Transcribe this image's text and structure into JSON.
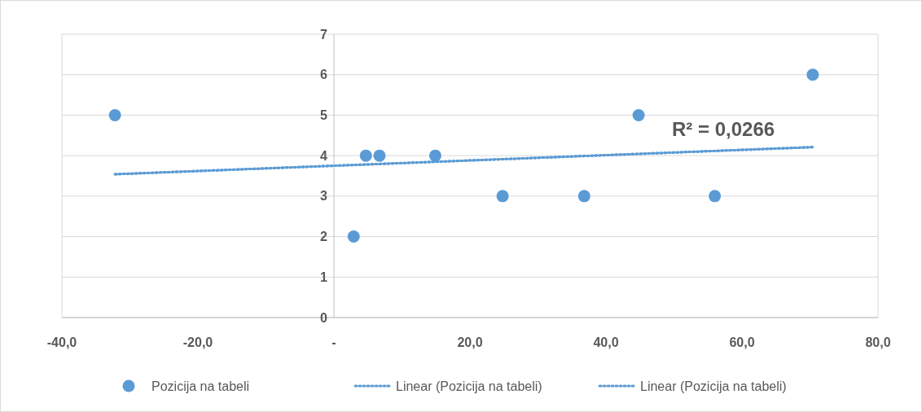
{
  "chart_data": {
    "type": "scatter",
    "xlim": [
      -40,
      80
    ],
    "ylim": [
      0,
      7
    ],
    "xticks": [
      {
        "value": -40,
        "label": "-40,0"
      },
      {
        "value": -20,
        "label": "-20,0"
      },
      {
        "value": 0,
        "label": "-"
      },
      {
        "value": 20,
        "label": "20,0"
      },
      {
        "value": 40,
        "label": "40,0"
      },
      {
        "value": 60,
        "label": "60,0"
      },
      {
        "value": 80,
        "label": "80,0"
      }
    ],
    "yticks": [
      0,
      1,
      2,
      3,
      4,
      5,
      6,
      7
    ],
    "grid": "y",
    "legend": "bottom",
    "marker": "circle",
    "annotations": [
      "R² = 0,0266"
    ],
    "series": [
      {
        "name": "Pozicija na tabeli",
        "color": "#5b9bd5",
        "x": [
          -32.2,
          4.7,
          6.7,
          14.9,
          2.9,
          24.8,
          36.8,
          44.8,
          56.0,
          70.4
        ],
        "values": [
          5,
          4,
          4,
          4,
          2,
          3,
          3,
          5,
          3,
          6
        ]
      },
      {
        "name": "Linear (Pozicija na tabeli)",
        "type": "line",
        "marker": "none",
        "line_style": "dotted",
        "color": "#5b9bd5",
        "x": [
          -32.2,
          70.4
        ],
        "values": [
          3.54,
          4.21
        ]
      },
      {
        "name": "Linear (Pozicija na tabeli)",
        "type": "line",
        "marker": "none",
        "line_style": "dotted",
        "color": "#5b9bd5",
        "x": [
          -32.2,
          70.4
        ],
        "values": [
          3.54,
          4.21
        ]
      }
    ]
  }
}
